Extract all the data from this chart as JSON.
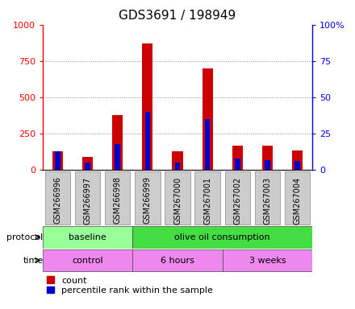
{
  "title": "GDS3691 / 198949",
  "samples": [
    "GSM266996",
    "GSM266997",
    "GSM266998",
    "GSM266999",
    "GSM267000",
    "GSM267001",
    "GSM267002",
    "GSM267003",
    "GSM267004"
  ],
  "count_values": [
    130,
    90,
    380,
    870,
    130,
    700,
    170,
    165,
    135
  ],
  "percentile_values": [
    130,
    50,
    180,
    400,
    50,
    350,
    80,
    70,
    60
  ],
  "left_ylim": [
    0,
    1000
  ],
  "right_ylim": [
    0,
    100
  ],
  "left_yticks": [
    0,
    250,
    500,
    750,
    1000
  ],
  "right_yticks": [
    0,
    25,
    50,
    75,
    100
  ],
  "left_yticklabels": [
    "0",
    "250",
    "500",
    "750",
    "1000"
  ],
  "right_yticklabels": [
    "0",
    "25",
    "50",
    "75",
    "100%"
  ],
  "bar_color_red": "#cc0000",
  "bar_color_blue": "#0000cc",
  "red_bar_width": 0.35,
  "blue_bar_width": 0.18,
  "protocol_labels": [
    {
      "text": "baseline",
      "start": 0,
      "end": 3,
      "color": "#99ff99"
    },
    {
      "text": "olive oil consumption",
      "start": 3,
      "end": 9,
      "color": "#44dd44"
    }
  ],
  "time_labels": [
    {
      "text": "control",
      "start": 0,
      "end": 3,
      "color": "#ee88ee"
    },
    {
      "text": "6 hours",
      "start": 3,
      "end": 6,
      "color": "#ee88ee"
    },
    {
      "text": "3 weeks",
      "start": 6,
      "end": 9,
      "color": "#ee88ee"
    }
  ],
  "legend_count_label": "count",
  "legend_pct_label": "percentile rank within the sample",
  "protocol_row_label": "protocol",
  "time_row_label": "time",
  "title_fontsize": 11,
  "tick_fontsize": 8,
  "label_fontsize": 8,
  "dotted_grid_color": "#888888",
  "xtick_box_color": "#cccccc"
}
